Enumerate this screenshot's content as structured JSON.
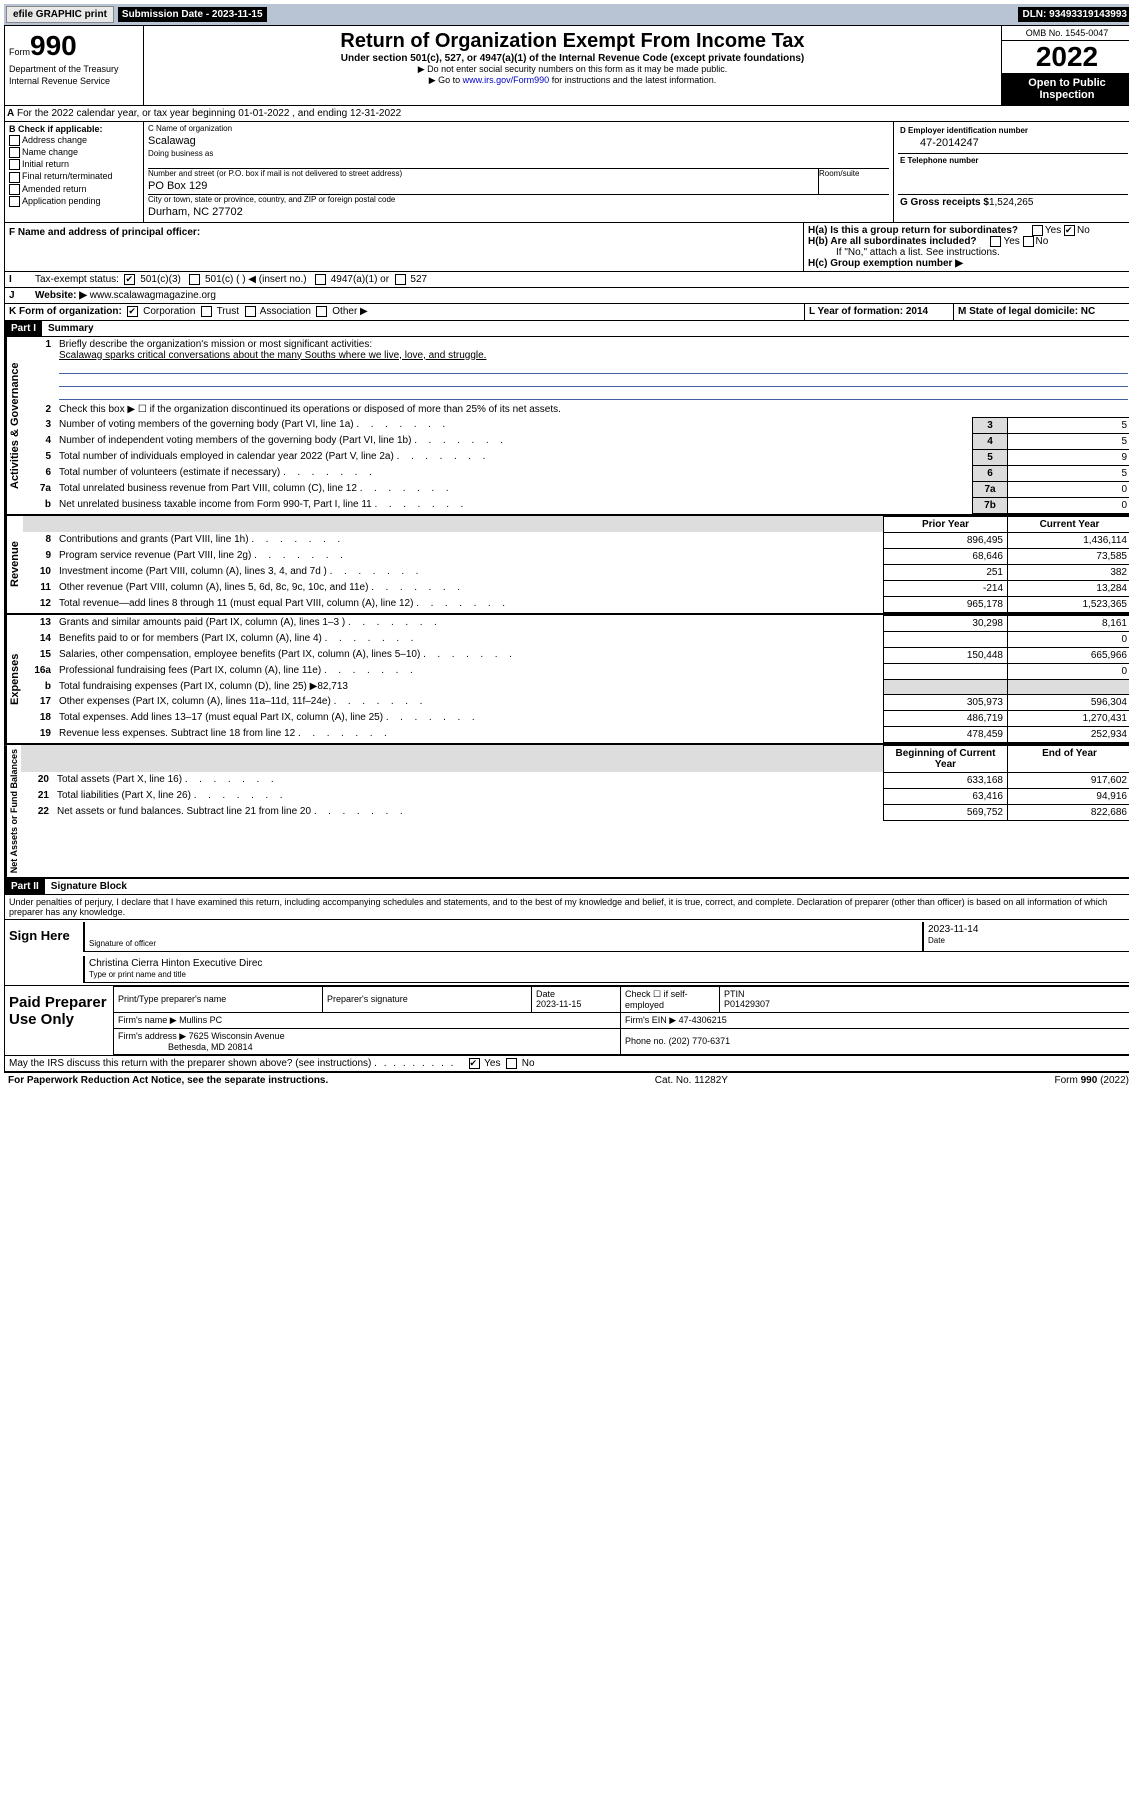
{
  "topbar": {
    "efile": "efile GRAPHIC print",
    "submission_label": "Submission Date - 2023-11-15",
    "dln_label": "DLN: 93493319143993"
  },
  "header": {
    "form_prefix": "Form",
    "form_number": "990",
    "dept": "Department of the Treasury",
    "irs": "Internal Revenue Service",
    "title": "Return of Organization Exempt From Income Tax",
    "subtitle": "Under section 501(c), 527, or 4947(a)(1) of the Internal Revenue Code (except private foundations)",
    "note1": "▶ Do not enter social security numbers on this form as it may be made public.",
    "note2_pre": "▶ Go to ",
    "note2_link": "www.irs.gov/Form990",
    "note2_post": " for instructions and the latest information.",
    "omb": "OMB No. 1545-0047",
    "year": "2022",
    "open_public": "Open to Public Inspection"
  },
  "section_a": {
    "text": "For the 2022 calendar year, or tax year beginning 01-01-2022    , and ending 12-31-2022"
  },
  "section_b": {
    "label": "B Check if applicable:",
    "items": [
      "Address change",
      "Name change",
      "Initial return",
      "Final return/terminated",
      "Amended return",
      "Application pending"
    ]
  },
  "section_c": {
    "name_label": "C Name of organization",
    "name": "Scalawag",
    "dba_label": "Doing business as",
    "addr_label": "Number and street (or P.O. box if mail is not delivered to street address)",
    "room_label": "Room/suite",
    "addr": "PO Box 129",
    "city_label": "City or town, state or province, country, and ZIP or foreign postal code",
    "city": "Durham, NC  27702"
  },
  "section_d": {
    "label": "D Employer identification number",
    "val": "47-2014247"
  },
  "section_e": {
    "label": "E Telephone number",
    "val": ""
  },
  "section_f": {
    "label": "F Name and address of principal officer:",
    "val": ""
  },
  "section_g": {
    "label": "G Gross receipts $",
    "val": "1,524,265"
  },
  "section_h": {
    "a_label": "H(a)  Is this a group return for subordinates?",
    "b_label": "H(b)  Are all subordinates included?",
    "b_note": "If \"No,\" attach a list. See instructions.",
    "c_label": "H(c)  Group exemption number ▶"
  },
  "section_i": {
    "label": "Tax-exempt status:"
  },
  "section_j": {
    "label": "Website: ▶",
    "val": "www.scalawagmagazine.org"
  },
  "section_k": {
    "label": "K Form of organization:"
  },
  "section_l": {
    "label": "L Year of formation: 2014"
  },
  "section_m": {
    "label": "M State of legal domicile: NC"
  },
  "part1": {
    "header": "Part I",
    "title": "Summary",
    "line1_label": "Briefly describe the organization's mission or most significant activities:",
    "line1_val": "Scalawag sparks critical conversations about the many Souths where we live, love, and struggle.",
    "line2": "Check this box ▶ ☐  if the organization discontinued its operations or disposed of more than 25% of its net assets.",
    "vert_labels": {
      "ag": "Activities & Governance",
      "rev": "Revenue",
      "exp": "Expenses",
      "na": "Net Assets or Fund Balances"
    }
  },
  "summary_rows_ag": [
    {
      "n": "3",
      "t": "Number of voting members of the governing body (Part VI, line 1a)",
      "box": "3",
      "v": "5"
    },
    {
      "n": "4",
      "t": "Number of independent voting members of the governing body (Part VI, line 1b)",
      "box": "4",
      "v": "5"
    },
    {
      "n": "5",
      "t": "Total number of individuals employed in calendar year 2022 (Part V, line 2a)",
      "box": "5",
      "v": "9"
    },
    {
      "n": "6",
      "t": "Total number of volunteers (estimate if necessary)",
      "box": "6",
      "v": "5"
    },
    {
      "n": "7a",
      "t": "Total unrelated business revenue from Part VIII, column (C), line 12",
      "box": "7a",
      "v": "0"
    },
    {
      "n": "b",
      "t": "Net unrelated business taxable income from Form 990-T, Part I, line 11",
      "box": "7b",
      "v": "0"
    }
  ],
  "year_headers": {
    "prior": "Prior Year",
    "current": "Current Year"
  },
  "summary_rows_rev": [
    {
      "n": "8",
      "t": "Contributions and grants (Part VIII, line 1h)",
      "p": "896,495",
      "c": "1,436,114"
    },
    {
      "n": "9",
      "t": "Program service revenue (Part VIII, line 2g)",
      "p": "68,646",
      "c": "73,585"
    },
    {
      "n": "10",
      "t": "Investment income (Part VIII, column (A), lines 3, 4, and 7d )",
      "p": "251",
      "c": "382"
    },
    {
      "n": "11",
      "t": "Other revenue (Part VIII, column (A), lines 5, 6d, 8c, 9c, 10c, and 11e)",
      "p": "-214",
      "c": "13,284"
    },
    {
      "n": "12",
      "t": "Total revenue—add lines 8 through 11 (must equal Part VIII, column (A), line 12)",
      "p": "965,178",
      "c": "1,523,365"
    }
  ],
  "summary_rows_exp": [
    {
      "n": "13",
      "t": "Grants and similar amounts paid (Part IX, column (A), lines 1–3 )",
      "p": "30,298",
      "c": "8,161"
    },
    {
      "n": "14",
      "t": "Benefits paid to or for members (Part IX, column (A), line 4)",
      "p": "",
      "c": "0"
    },
    {
      "n": "15",
      "t": "Salaries, other compensation, employee benefits (Part IX, column (A), lines 5–10)",
      "p": "150,448",
      "c": "665,966"
    },
    {
      "n": "16a",
      "t": "Professional fundraising fees (Part IX, column (A), line 11e)",
      "p": "",
      "c": "0"
    },
    {
      "n": "b",
      "t": "Total fundraising expenses (Part IX, column (D), line 25) ▶82,713",
      "p": "grey",
      "c": "grey"
    },
    {
      "n": "17",
      "t": "Other expenses (Part IX, column (A), lines 11a–11d, 11f–24e)",
      "p": "305,973",
      "c": "596,304"
    },
    {
      "n": "18",
      "t": "Total expenses. Add lines 13–17 (must equal Part IX, column (A), line 25)",
      "p": "486,719",
      "c": "1,270,431"
    },
    {
      "n": "19",
      "t": "Revenue less expenses. Subtract line 18 from line 12",
      "p": "478,459",
      "c": "252,934"
    }
  ],
  "na_headers": {
    "begin": "Beginning of Current Year",
    "end": "End of Year"
  },
  "summary_rows_na": [
    {
      "n": "20",
      "t": "Total assets (Part X, line 16)",
      "p": "633,168",
      "c": "917,602"
    },
    {
      "n": "21",
      "t": "Total liabilities (Part X, line 26)",
      "p": "63,416",
      "c": "94,916"
    },
    {
      "n": "22",
      "t": "Net assets or fund balances. Subtract line 21 from line 20",
      "p": "569,752",
      "c": "822,686"
    }
  ],
  "part2": {
    "header": "Part II",
    "title": "Signature Block",
    "penalty": "Under penalties of perjury, I declare that I have examined this return, including accompanying schedules and statements, and to the best of my knowledge and belief, it is true, correct, and complete. Declaration of preparer (other than officer) is based on all information of which preparer has any knowledge."
  },
  "sign": {
    "label": "Sign Here",
    "sig_officer": "Signature of officer",
    "date": "Date",
    "date_val": "2023-11-14",
    "name_val": "Christina Cierra Hinton  Executive Direc",
    "name_label": "Type or print name and title"
  },
  "paid": {
    "label": "Paid Preparer Use Only",
    "h1": "Print/Type preparer's name",
    "h2": "Preparer's signature",
    "h3": "Date",
    "h3v": "2023-11-15",
    "h4": "Check ☐ if self-employed",
    "h5": "PTIN",
    "h5v": "P01429307",
    "firm_name_label": "Firm's name    ▶",
    "firm_name": "Mullins PC",
    "firm_ein_label": "Firm's EIN ▶",
    "firm_ein": "47-4306215",
    "firm_addr_label": "Firm's address ▶",
    "firm_addr": "7625 Wisconsin Avenue",
    "firm_addr2": "Bethesda, MD  20814",
    "phone_label": "Phone no.",
    "phone": "(202) 770-6371"
  },
  "may_discuss": "May the IRS discuss this return with the preparer shown above? (see instructions)",
  "footer": {
    "left": "For Paperwork Reduction Act Notice, see the separate instructions.",
    "mid": "Cat. No. 11282Y",
    "right": "Form 990 (2022)"
  },
  "form_options": {
    "i_501c3": "501(c)(3)",
    "i_501c": "501(c) (  ) ◀ (insert no.)",
    "i_4947": "4947(a)(1) or",
    "i_527": "527",
    "k_corp": "Corporation",
    "k_trust": "Trust",
    "k_assoc": "Association",
    "k_other": "Other ▶"
  }
}
